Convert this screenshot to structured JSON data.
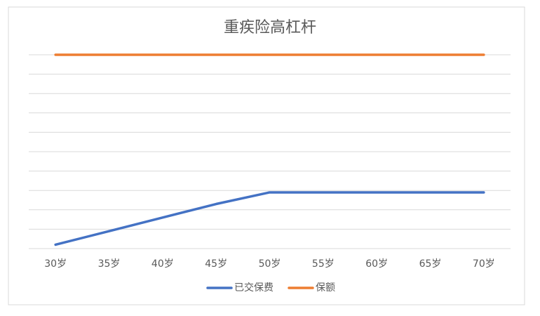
{
  "chart_data": {
    "type": "line",
    "title": "重疾险高杠杆",
    "categories": [
      "30岁",
      "35岁",
      "40岁",
      "45岁",
      "50岁",
      "55岁",
      "60岁",
      "65岁",
      "70岁"
    ],
    "series": [
      {
        "name": "已交保费",
        "color": "#4472c4",
        "values": [
          0.2,
          0.9,
          1.6,
          2.3,
          2.9,
          2.9,
          2.9,
          2.9,
          2.9
        ]
      },
      {
        "name": "保额",
        "color": "#ed7d31",
        "values": [
          10,
          10,
          10,
          10,
          10,
          10,
          10,
          10,
          10
        ]
      }
    ],
    "ylim": [
      0,
      10
    ],
    "yticks": [
      0,
      1,
      2,
      3,
      4,
      5,
      6,
      7,
      8,
      9,
      10
    ],
    "grid": true
  }
}
